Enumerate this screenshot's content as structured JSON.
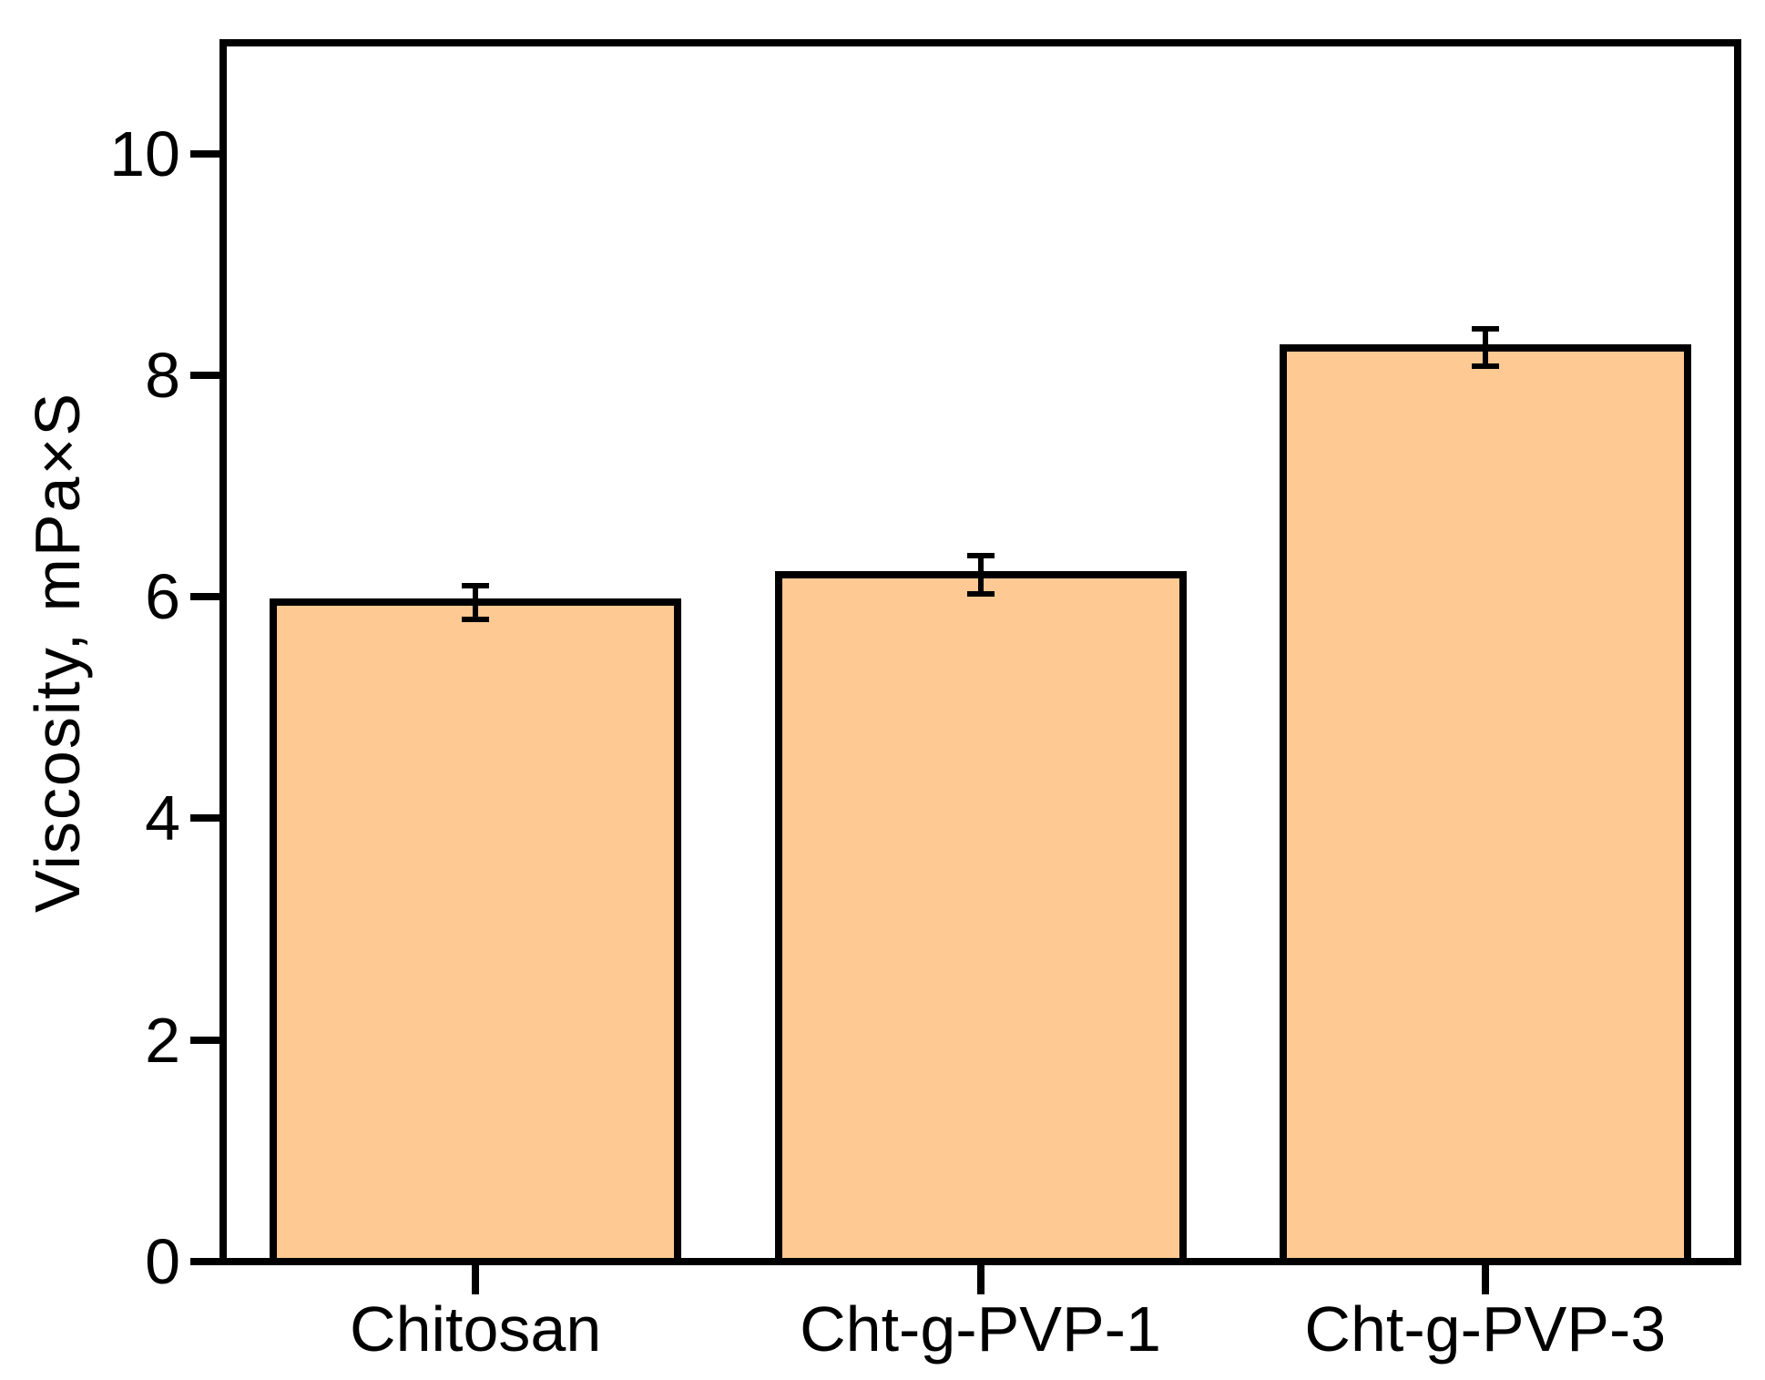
{
  "figure": {
    "background": "#ffffff",
    "axis_color": "#000000",
    "bar_fill": "#ffc993",
    "bar_stroke": "#000000"
  },
  "chart_data": {
    "type": "bar",
    "title": "",
    "xlabel": "",
    "ylabel": "Viscosity, mPa×S",
    "categories": [
      "Chitosan",
      "Cht-g-PVP-1",
      "Cht-g-PVP-3"
    ],
    "values": [
      5.95,
      6.2,
      8.25
    ],
    "errors": [
      0.15,
      0.17,
      0.17
    ],
    "ylim": [
      0,
      11
    ],
    "yticks": [
      0,
      2,
      4,
      6,
      8,
      10
    ],
    "grid": false,
    "legend_position": "none"
  }
}
